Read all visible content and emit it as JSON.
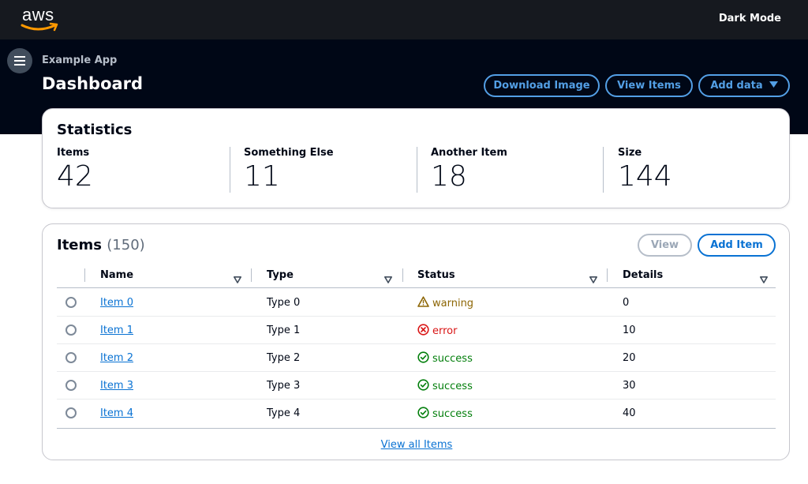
{
  "topbar": {
    "logo_text": "aws",
    "dark_mode_label": "Dark Mode"
  },
  "header": {
    "app_name": "Example App",
    "title": "Dashboard",
    "buttons": {
      "download_image": "Download Image",
      "view_items": "View Items",
      "add_data": "Add data"
    }
  },
  "statistics": {
    "title": "Statistics",
    "stats": [
      {
        "label": "Items",
        "value": "42"
      },
      {
        "label": "Something Else",
        "value": "11"
      },
      {
        "label": "Another Item",
        "value": "18"
      },
      {
        "label": "Size",
        "value": "144"
      }
    ]
  },
  "items": {
    "title": "Items",
    "count": "(150)",
    "view_button": "View",
    "add_button": "Add Item",
    "columns": [
      "Name",
      "Type",
      "Status",
      "Details"
    ],
    "rows": [
      {
        "name": "Item 0",
        "type": "Type 0",
        "status": "warning",
        "details": "0"
      },
      {
        "name": "Item 1",
        "type": "Type 1",
        "status": "error",
        "details": "10"
      },
      {
        "name": "Item 2",
        "type": "Type 2",
        "status": "success",
        "details": "20"
      },
      {
        "name": "Item 3",
        "type": "Type 3",
        "status": "success",
        "details": "30"
      },
      {
        "name": "Item 4",
        "type": "Type 4",
        "status": "success",
        "details": "40"
      }
    ],
    "view_all": "View all Items"
  },
  "colors": {
    "topbar_bg": "#16191f",
    "header_bg": "#000716",
    "link_blue": "#0972d3",
    "header_button_blue": "#539fe5",
    "warning": "#8d6605",
    "error": "#d91515",
    "success": "#037f0c"
  },
  "icons": {
    "menu": "hamburger-icon",
    "dropdown": "caret-down-icon",
    "sort": "sort-caret-icon",
    "warning": "warning-triangle-icon",
    "error": "error-circle-x-icon",
    "success": "success-circle-check-icon",
    "logo_smile": "aws-smile-arrow-icon"
  }
}
